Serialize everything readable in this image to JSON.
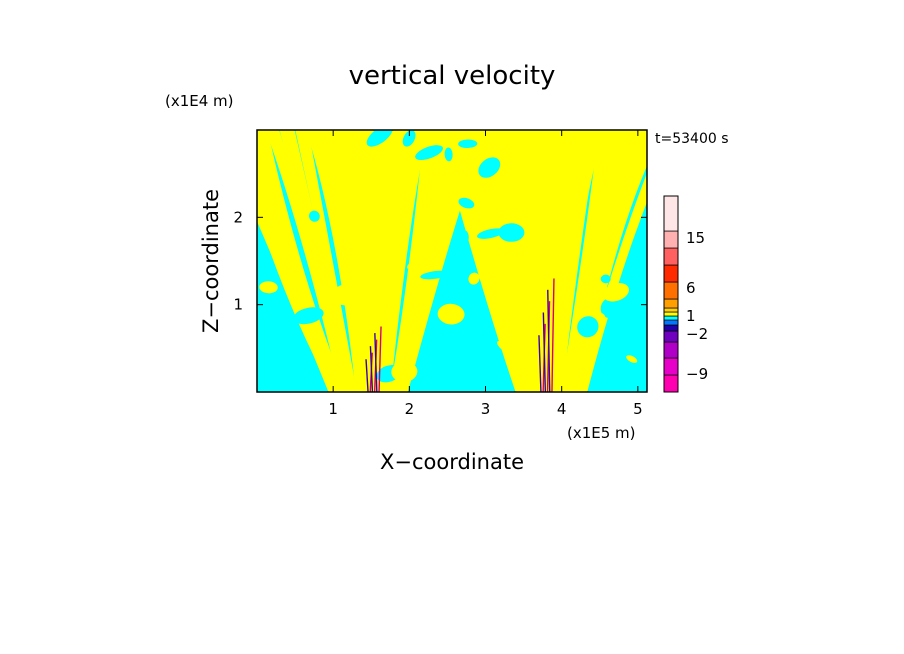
{
  "chart_data": {
    "type": "heatmap",
    "title": "vertical velocity",
    "xlabel": "X−coordinate",
    "ylabel": "Z−coordinate",
    "x_unit": "(x1E5 m)",
    "y_unit": "(x1E4 m)",
    "time_label": "t=53400 s",
    "xlim": [
      0,
      5.12
    ],
    "ylim": [
      0,
      3.0
    ],
    "x_ticks": [
      1,
      2,
      3,
      4,
      5
    ],
    "y_ticks": [
      1,
      2
    ],
    "x_tick_labels": [
      "1",
      "2",
      "3",
      "4",
      "5"
    ],
    "y_tick_labels": [
      "1",
      "2"
    ],
    "grid": false,
    "colorbar": {
      "tick_values": [
        15,
        6,
        1,
        -2,
        -9
      ],
      "tick_labels": [
        "15",
        "6",
        "1",
        "−2",
        "−9"
      ],
      "levels": [
        {
          "color": "#ff00b0"
        },
        {
          "color": "#e600c8"
        },
        {
          "color": "#b000c8"
        },
        {
          "color": "#7000c0"
        },
        {
          "color": "#2000a8"
        },
        {
          "color": "#0078ff"
        },
        {
          "color": "#00ffff"
        },
        {
          "color": "#ffff00"
        },
        {
          "color": "#ffd200"
        },
        {
          "color": "#ffa000"
        },
        {
          "color": "#ff7000"
        },
        {
          "color": "#ff2a00"
        },
        {
          "color": "#ff6060"
        },
        {
          "color": "#ffb0b0"
        },
        {
          "color": "#ffe6e6"
        }
      ]
    },
    "field_colors": {
      "positive": "#ffff00",
      "negative": "#00ffff",
      "updraft": "#d4007a",
      "downdraft": "#3a00b0"
    }
  }
}
